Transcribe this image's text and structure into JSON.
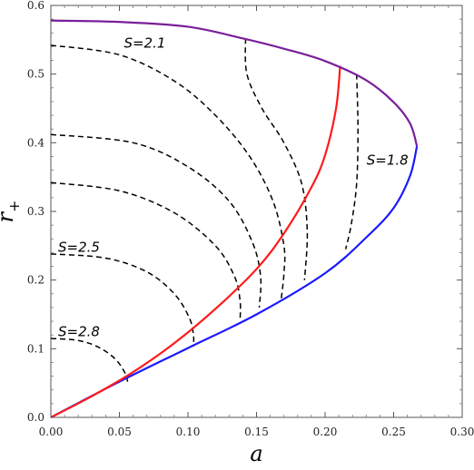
{
  "chart_data": {
    "type": "line",
    "title": "",
    "xlabel": "a",
    "ylabel": "r+",
    "xlim": [
      0.0,
      0.3
    ],
    "ylim": [
      0.0,
      0.6
    ],
    "x_ticks": [
      "0.00",
      "0.05",
      "0.10",
      "0.15",
      "0.20",
      "0.25",
      "0.30"
    ],
    "y_ticks": [
      "0.0",
      "0.1",
      "0.2",
      "0.3",
      "0.4",
      "0.5",
      "0.6"
    ],
    "grid": false,
    "legend": "none",
    "colors": {
      "outer_purple": "#7a1f9a",
      "lower_blue": "#1a1aff",
      "red": "#ff1a1a",
      "dashed": "#000000"
    },
    "series": [
      {
        "color": "outer_purple",
        "style": "solid",
        "points": [
          [
            0.0,
            0.578
          ],
          [
            0.05,
            0.576
          ],
          [
            0.1,
            0.569
          ],
          [
            0.14,
            0.552
          ],
          [
            0.17,
            0.537
          ],
          [
            0.2,
            0.519
          ],
          [
            0.23,
            0.491
          ],
          [
            0.25,
            0.459
          ],
          [
            0.262,
            0.428
          ],
          [
            0.267,
            0.395
          ]
        ]
      },
      {
        "color": "lower_blue",
        "style": "solid",
        "points": [
          [
            0.0,
            0.0
          ],
          [
            0.05,
            0.052
          ],
          [
            0.1,
            0.101
          ],
          [
            0.15,
            0.15
          ],
          [
            0.2,
            0.21
          ],
          [
            0.23,
            0.262
          ],
          [
            0.25,
            0.305
          ],
          [
            0.262,
            0.352
          ],
          [
            0.267,
            0.395
          ]
        ]
      },
      {
        "color": "red",
        "style": "solid",
        "points": [
          [
            0.0,
            0.0
          ],
          [
            0.03,
            0.031
          ],
          [
            0.06,
            0.066
          ],
          [
            0.09,
            0.108
          ],
          [
            0.12,
            0.158
          ],
          [
            0.15,
            0.216
          ],
          [
            0.17,
            0.268
          ],
          [
            0.19,
            0.335
          ],
          [
            0.2,
            0.382
          ],
          [
            0.208,
            0.45
          ],
          [
            0.211,
            0.512
          ]
        ]
      },
      {
        "color": "dashed",
        "style": "dashed",
        "points": [
          [
            0.0,
            0.115
          ],
          [
            0.02,
            0.112
          ],
          [
            0.035,
            0.102
          ],
          [
            0.047,
            0.085
          ],
          [
            0.054,
            0.065
          ],
          [
            0.056,
            0.052
          ]
        ]
      },
      {
        "color": "dashed",
        "style": "dashed",
        "points": [
          [
            0.0,
            0.238
          ],
          [
            0.04,
            0.232
          ],
          [
            0.07,
            0.212
          ],
          [
            0.09,
            0.18
          ],
          [
            0.101,
            0.145
          ],
          [
            0.104,
            0.12
          ],
          [
            0.104,
            0.103
          ]
        ]
      },
      {
        "color": "dashed",
        "style": "dashed",
        "points": [
          [
            0.0,
            0.342
          ],
          [
            0.05,
            0.33
          ],
          [
            0.09,
            0.298
          ],
          [
            0.12,
            0.25
          ],
          [
            0.134,
            0.205
          ],
          [
            0.138,
            0.17
          ],
          [
            0.138,
            0.142
          ]
        ]
      },
      {
        "color": "dashed",
        "style": "dashed",
        "points": [
          [
            0.0,
            0.412
          ],
          [
            0.06,
            0.4
          ],
          [
            0.1,
            0.365
          ],
          [
            0.13,
            0.315
          ],
          [
            0.147,
            0.255
          ],
          [
            0.153,
            0.205
          ],
          [
            0.152,
            0.16
          ]
        ]
      },
      {
        "color": "dashed",
        "style": "dashed",
        "points": [
          [
            0.0,
            0.542
          ],
          [
            0.05,
            0.528
          ],
          [
            0.09,
            0.49
          ],
          [
            0.12,
            0.44
          ],
          [
            0.145,
            0.38
          ],
          [
            0.162,
            0.315
          ],
          [
            0.17,
            0.25
          ],
          [
            0.17,
            0.21
          ],
          [
            0.168,
            0.172
          ]
        ]
      },
      {
        "color": "dashed",
        "style": "dashed",
        "points": [
          [
            0.142,
            0.552
          ],
          [
            0.143,
            0.5
          ],
          [
            0.154,
            0.45
          ],
          [
            0.17,
            0.4
          ],
          [
            0.183,
            0.34
          ],
          [
            0.187,
            0.27
          ],
          [
            0.185,
            0.2
          ]
        ]
      },
      {
        "color": "dashed",
        "style": "dashed",
        "points": [
          [
            0.223,
            0.5
          ],
          [
            0.224,
            0.42
          ],
          [
            0.223,
            0.34
          ],
          [
            0.219,
            0.28
          ],
          [
            0.215,
            0.245
          ]
        ]
      }
    ],
    "annotations": [
      {
        "text": "S=2.1",
        "x": 0.048,
        "y": 0.545
      },
      {
        "text": "S=1.8",
        "x": 0.225,
        "y": 0.375
      },
      {
        "text": "S=2.5",
        "x": 0.0,
        "y": 0.248
      },
      {
        "text": "S=2.8",
        "x": 0.0,
        "y": 0.125
      }
    ]
  }
}
